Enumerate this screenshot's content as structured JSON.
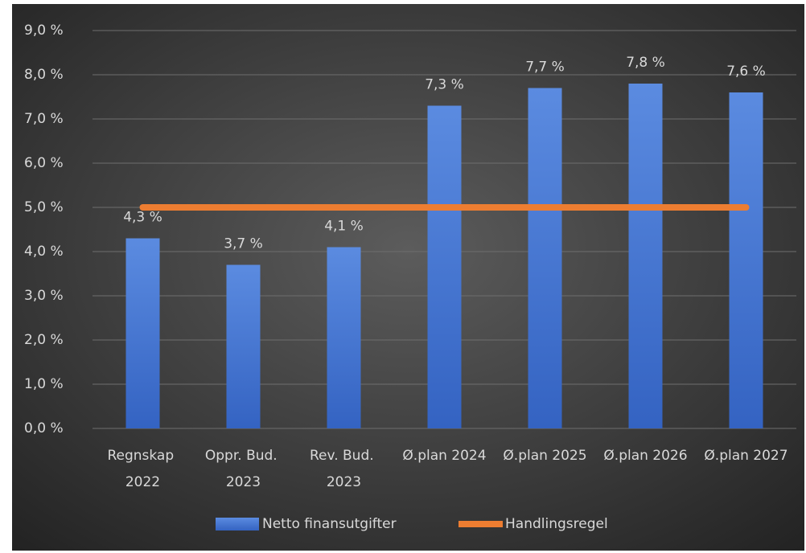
{
  "chart_data": {
    "type": "bar",
    "categories": [
      "Regnskap 2022",
      "Oppr. Bud. 2023",
      "Rev. Bud. 2023",
      "Ø.plan 2024",
      "Ø.plan 2025",
      "Ø.plan 2026",
      "Ø.plan 2027"
    ],
    "series": [
      {
        "name": "Netto finansutgifter",
        "type": "bar",
        "color": "#4a7bd4",
        "values": [
          4.3,
          3.7,
          4.1,
          7.3,
          7.7,
          7.8,
          7.6
        ],
        "value_labels": [
          "4,3 %",
          "3,7 %",
          "4,1 %",
          "7,3 %",
          "7,7 %",
          "7,8 %",
          "7,6 %"
        ]
      },
      {
        "name": "Handlingsregel",
        "type": "line",
        "color": "#ed7d31",
        "values": [
          5,
          5,
          5,
          5,
          5,
          5,
          5
        ]
      }
    ],
    "ylim": [
      0,
      9
    ],
    "yticks": [
      {
        "value": 0,
        "label": "0,0 %"
      },
      {
        "value": 1,
        "label": "1,0 %"
      },
      {
        "value": 2,
        "label": "2,0 %"
      },
      {
        "value": 3,
        "label": "3,0 %"
      },
      {
        "value": 4,
        "label": "4,0 %"
      },
      {
        "value": 5,
        "label": "5,0 %"
      },
      {
        "value": 6,
        "label": "6,0 %"
      },
      {
        "value": 7,
        "label": "7,0 %"
      },
      {
        "value": 8,
        "label": "8,0 %"
      },
      {
        "value": 9,
        "label": "9,0 %"
      }
    ],
    "grid": true,
    "legend": "bottom"
  }
}
